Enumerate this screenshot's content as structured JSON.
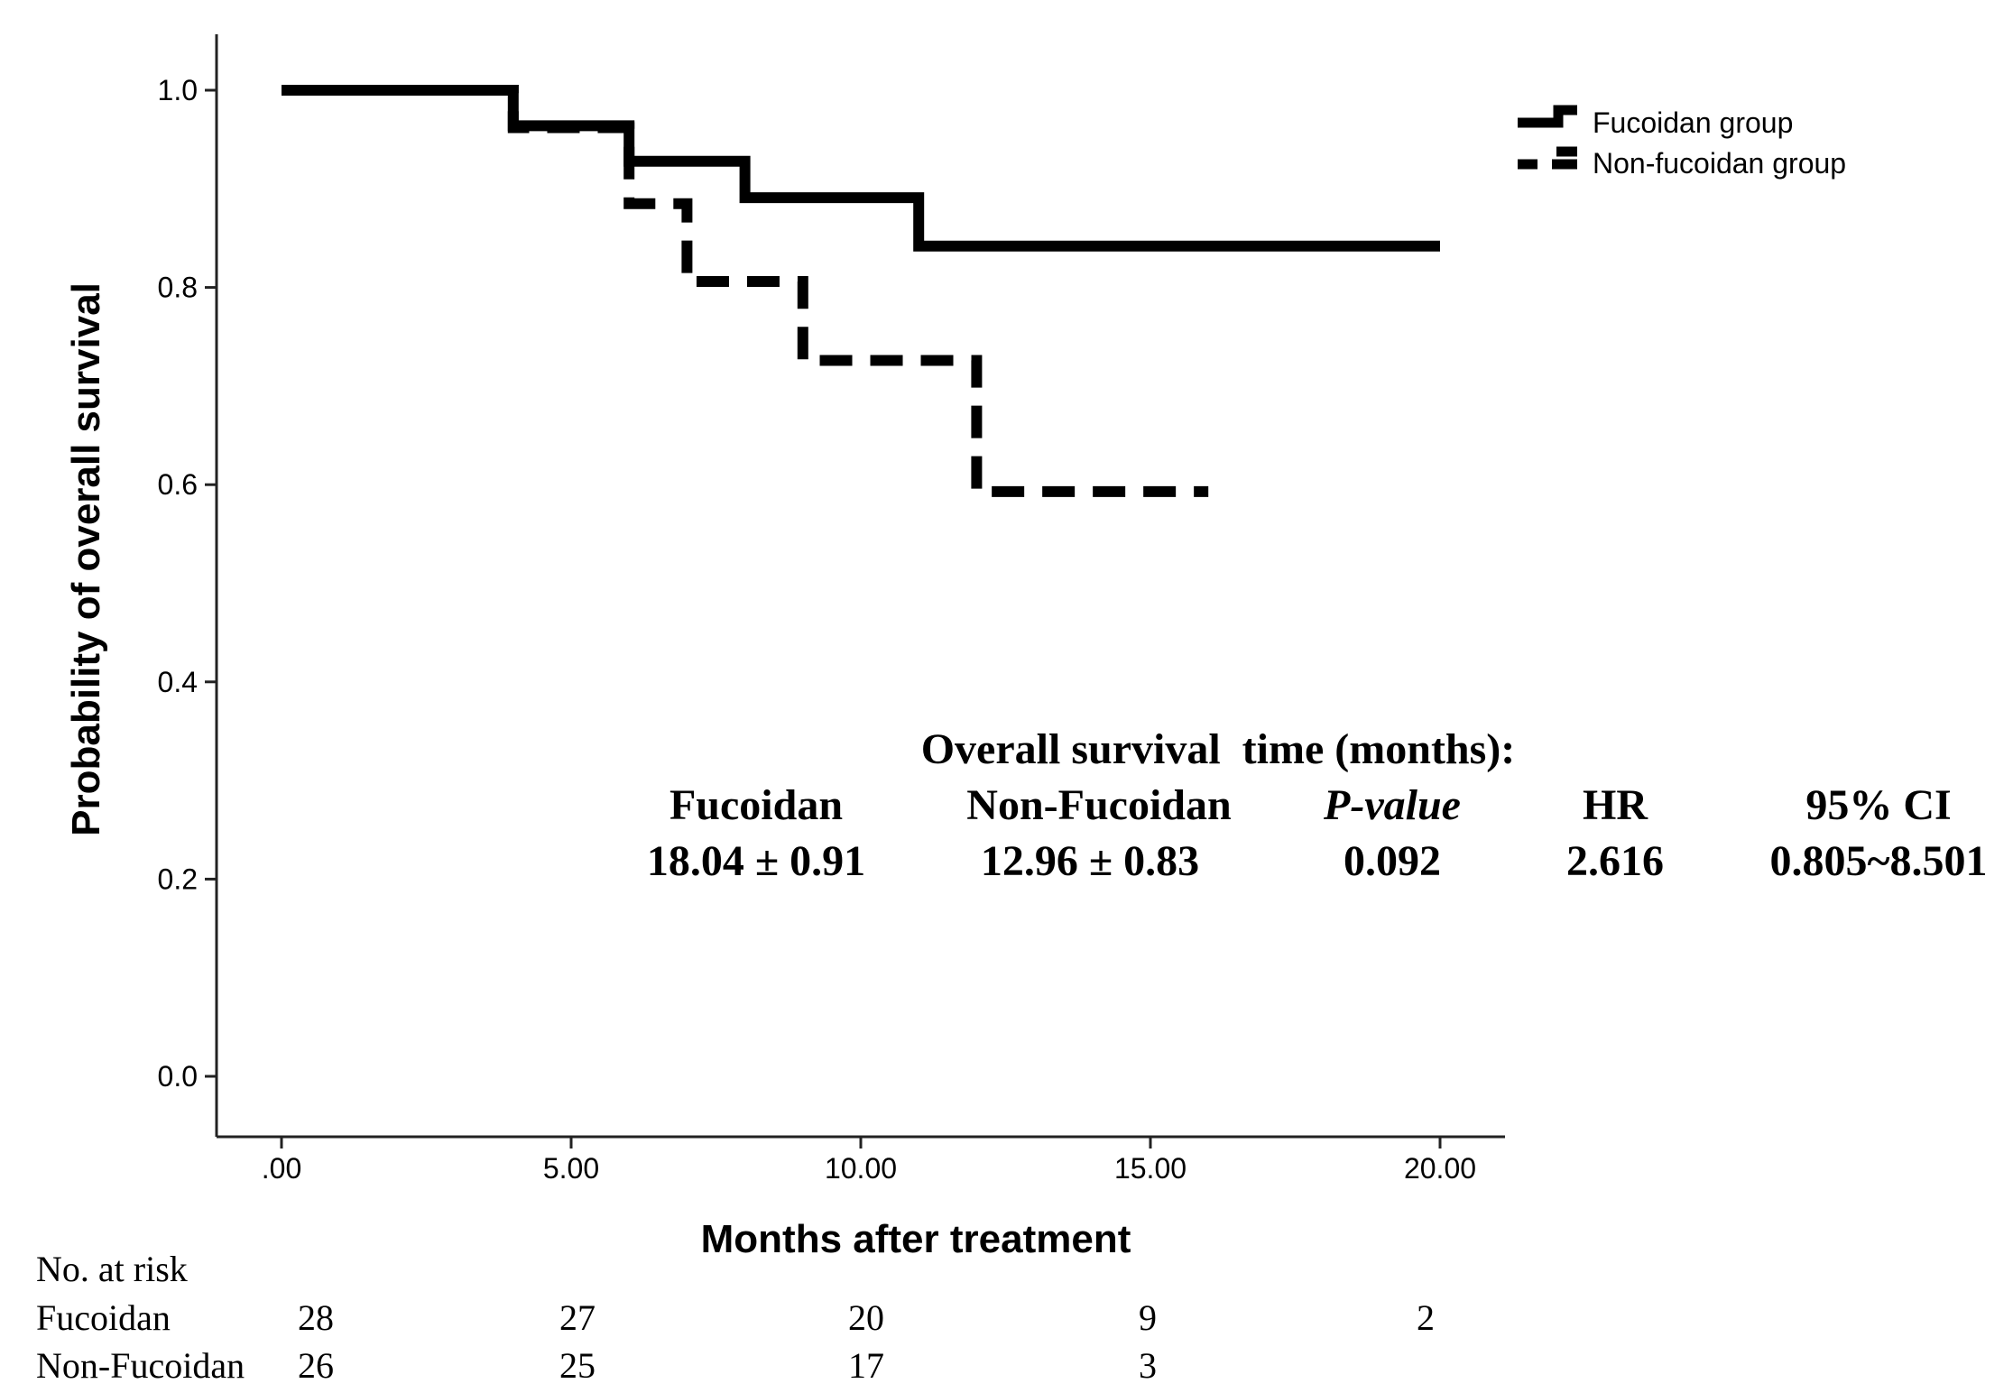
{
  "chart_data": {
    "type": "line",
    "subtype": "kaplan-meier step",
    "xlabel": "Months after treatment",
    "ylabel": "Probability of overall survival",
    "xlim": [
      -1,
      21
    ],
    "ylim": [
      -0.06,
      1.06
    ],
    "xticks": [
      0,
      5,
      10,
      15,
      20
    ],
    "xtick_labels": [
      ".00",
      "5.00",
      "10.00",
      "15.00",
      "20.00"
    ],
    "yticks": [
      0,
      0.2,
      0.4,
      0.6,
      0.8,
      1.0
    ],
    "ytick_labels": [
      "0.0",
      "0.2",
      "0.4",
      "0.6",
      "0.8",
      "1.0"
    ],
    "grid": false,
    "legend_position": "top-right",
    "series": [
      {
        "name": "Fucoidan group",
        "style": "solid",
        "color": "#000000",
        "x": [
          0,
          4,
          6,
          8,
          11,
          20
        ],
        "y": [
          1.0,
          0.964,
          0.928,
          0.891,
          0.842,
          0.842
        ]
      },
      {
        "name": "Non-fucoidan group",
        "style": "dashed",
        "color": "#000000",
        "x": [
          0,
          4,
          6,
          7,
          9,
          12,
          16
        ],
        "y": [
          1.0,
          0.962,
          0.885,
          0.806,
          0.726,
          0.593,
          0.593
        ]
      }
    ],
    "summary_table": {
      "title": "Overall survival  time (months):",
      "headers": [
        "Fucoidan",
        "Non-Fucoidan",
        "P-value",
        "HR",
        "95% CI"
      ],
      "values": [
        "18.04 ± 0.91",
        "12.96 ± 0.83",
        "0.092",
        "2.616",
        "0.805~8.501"
      ]
    },
    "risk_table": {
      "title": "No. at risk",
      "rows": [
        {
          "label": "Fucoidan",
          "counts": [
            28,
            27,
            20,
            9,
            2
          ]
        },
        {
          "label": "Non-Fucoidan",
          "counts": [
            26,
            25,
            17,
            3
          ]
        }
      ]
    }
  }
}
